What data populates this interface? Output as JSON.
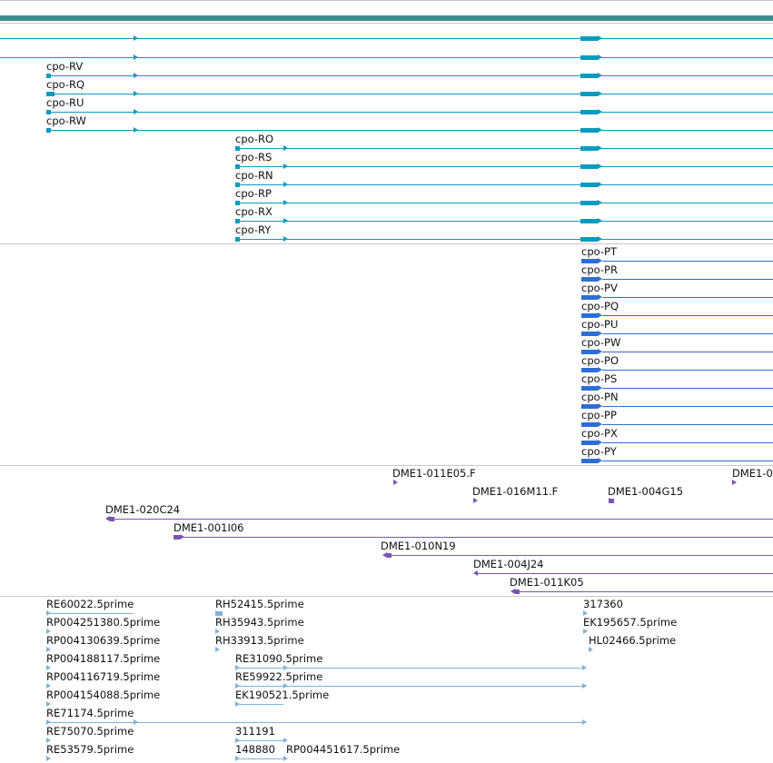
{
  "colors": {
    "top_bar": "#3c8c8c",
    "transcript": "#0a9bbf",
    "cds": "#2c6ed6",
    "clone": "#7a55b5",
    "est": "#7fb3d9",
    "separator": "#c8c8c8"
  },
  "tracks": [
    {
      "name": "transcripts",
      "labels": [
        "cpo-RV",
        "cpo-RQ",
        "cpo-RU",
        "cpo-RW",
        "cpo-RO",
        "cpo-RS",
        "cpo-RN",
        "cpo-RP",
        "cpo-RX",
        "cpo-RY"
      ]
    },
    {
      "name": "cds",
      "labels": [
        "cpo-PT",
        "cpo-PR",
        "cpo-PV",
        "cpo-PQ",
        "cpo-PU",
        "cpo-PW",
        "cpo-PO",
        "cpo-PS",
        "cpo-PN",
        "cpo-PP",
        "cpo-PX",
        "cpo-PY"
      ]
    },
    {
      "name": "clones",
      "labels": [
        "DME1-011E05.F",
        "DME1-016M11.F",
        "DME1-004G15",
        "DME1-0",
        "DME1-020C24",
        "DME1-001I06",
        "DME1-010N19",
        "DME1-004J24",
        "DME1-011K05"
      ]
    },
    {
      "name": "ests",
      "labels": [
        "RE60022.5prime",
        "RH52415.5prime",
        "317360",
        "RP004251380.5prime",
        "RH35943.5prime",
        "EK195657.5prime",
        "RP004130639.5prime",
        "RH33913.5prime",
        "HL02466.5prime",
        "RP004188117.5prime",
        "RE31090.5prime",
        "RP004116719.5prime",
        "RE59922.5prime",
        "RP004154088.5prime",
        "EK190521.5prime",
        "RE71174.5prime",
        "RE75070.5prime",
        "311191",
        "RE53579.5prime",
        "148880",
        "RP004451617.5prime"
      ]
    }
  ]
}
